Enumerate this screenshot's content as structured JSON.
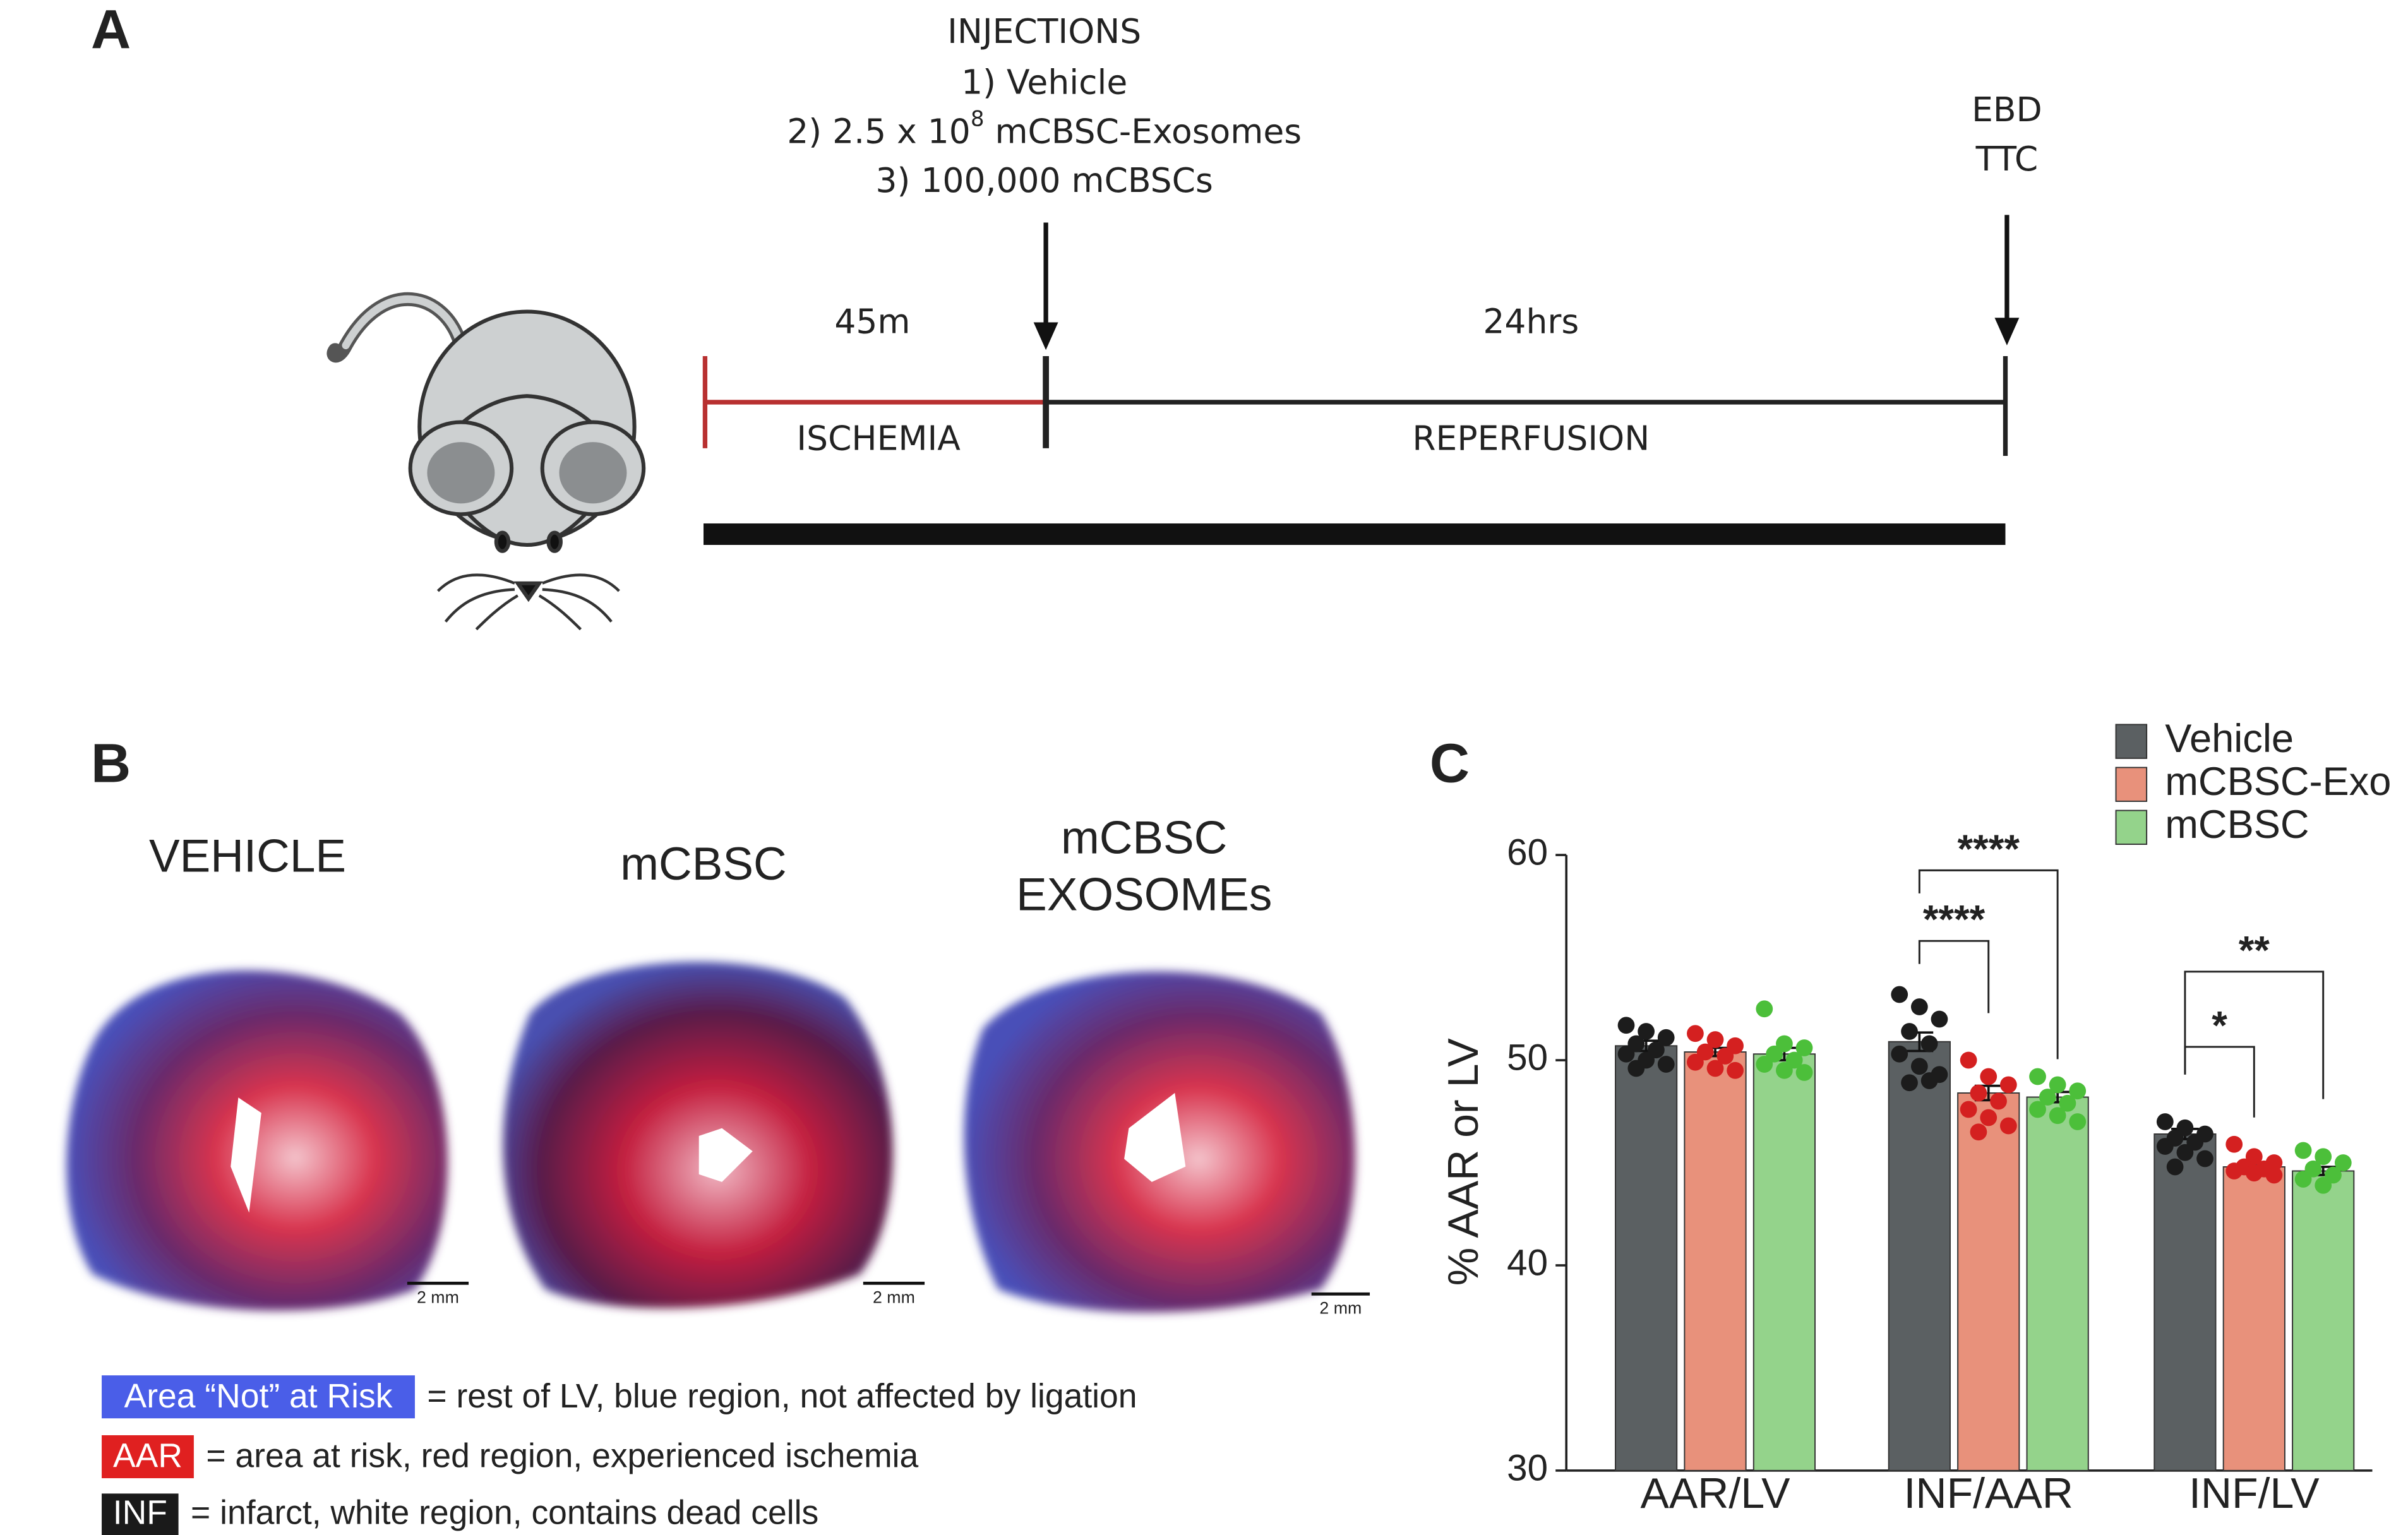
{
  "panel_a": {
    "label": "A",
    "injections_title": "INJECTIONS",
    "injection_1": "1) Vehicle",
    "injection_2": {
      "before": "2) 2.5 x 10",
      "superscript": "8",
      "after": " mCBSC-Exosomes"
    },
    "injection_3": "3) 100,000 mCBSCs",
    "ischemia_duration": "45m",
    "reperfusion_duration": "24hrs",
    "ischemia": "ISCHEMIA",
    "reperfusion": "REPERFUSION",
    "endpoints": [
      "EBD",
      "TTC"
    ]
  },
  "panel_b": {
    "label": "B",
    "samples": [
      [
        "VEHICLE"
      ],
      [
        "mCBSC"
      ],
      [
        "mCBSC",
        "EXOSOMEs"
      ]
    ],
    "scale_bars": [
      "2 mm",
      "2 mm",
      "2 mm"
    ],
    "legend": [
      {
        "key": "Area “Not” at Risk",
        "text": "= rest of LV, blue region, not affected by ligation"
      },
      {
        "key": "AAR",
        "text": "= area at risk, red region, experienced ischemia"
      },
      {
        "key": "INF",
        "text": "= infarct, white region, contains dead cells"
      }
    ]
  },
  "chart_data": {
    "type": "bar",
    "panel_label": "C",
    "y_label": "% AAR or LV",
    "categories": [
      "AAR/LV",
      "INF/AAR",
      "INF/LV"
    ],
    "ylim": [
      30,
      60
    ],
    "yticks": [
      30,
      40,
      50,
      60
    ],
    "legend_position": "top-right",
    "series": [
      {
        "name": "Vehicle",
        "color": "#5b6062",
        "point_color": "#1c1c1c",
        "values": [
          50.7,
          50.9,
          46.4
        ],
        "errors": [
          0.25,
          0.45,
          0.25
        ],
        "points": [
          [
            51.7,
            51.4,
            51.1,
            50.8,
            50.5,
            50.3,
            50.0,
            49.8,
            49.6
          ],
          [
            53.2,
            52.6,
            52.0,
            51.4,
            50.8,
            50.3,
            49.7,
            49.3,
            48.9,
            49.0
          ],
          [
            47.0,
            46.7,
            46.4,
            46.2,
            46.0,
            45.8,
            45.5,
            45.2,
            44.8
          ]
        ]
      },
      {
        "name": "mCBSC-Exo",
        "color": "#e8917b",
        "point_color": "#d42020",
        "values": [
          50.4,
          48.4,
          44.8
        ],
        "errors": [
          0.2,
          0.35,
          0.15
        ],
        "points": [
          [
            51.3,
            51.0,
            50.7,
            50.4,
            50.2,
            49.9,
            49.6,
            49.5
          ],
          [
            50.0,
            49.2,
            48.8,
            48.4,
            48.0,
            47.6,
            47.2,
            46.8,
            46.5
          ],
          [
            45.9,
            45.3,
            45.0,
            44.8,
            44.7,
            44.6,
            44.5,
            44.4
          ]
        ]
      },
      {
        "name": "mCBSC",
        "color": "#94d38b",
        "point_color": "#4cbf3a",
        "values": [
          50.3,
          48.2,
          44.6
        ],
        "errors": [
          0.3,
          0.25,
          0.2
        ],
        "points": [
          [
            52.5,
            50.8,
            50.6,
            50.3,
            50.0,
            49.8,
            49.5,
            49.4
          ],
          [
            49.2,
            48.8,
            48.5,
            48.2,
            47.9,
            47.6,
            47.3,
            47.0
          ],
          [
            45.6,
            45.3,
            45.0,
            44.7,
            44.4,
            44.2,
            43.9
          ]
        ]
      }
    ],
    "significance": [
      "****",
      "****",
      "*",
      "**"
    ]
  }
}
